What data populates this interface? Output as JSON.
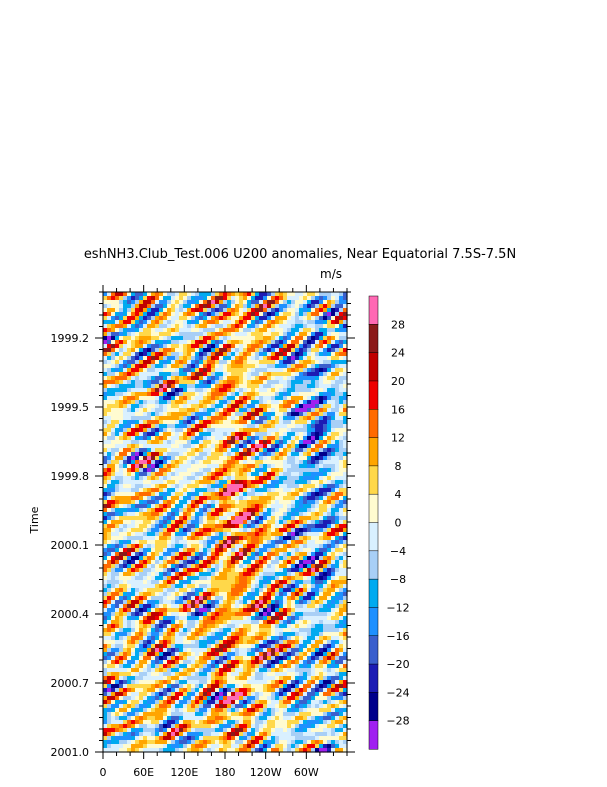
{
  "chart_data": {
    "type": "heatmap",
    "title": "eshNH3.Club_Test.006 U200 anomalies, Near Equatorial 7.5S-7.5N",
    "units_label": "m/s",
    "ylabel": "Time",
    "xlabel": "",
    "x_ticks": [
      "0",
      "60E",
      "120E",
      "180",
      "120W",
      "60W"
    ],
    "x_tick_degrees": [
      0,
      60,
      120,
      180,
      240,
      300
    ],
    "xlim": [
      0,
      360
    ],
    "y_ticks": [
      1999.2,
      1999.5,
      1999.8,
      2000.1,
      2000.4,
      2000.7,
      2001.0
    ],
    "y_tick_labels": [
      "1999.2",
      "1999.5",
      "1999.8",
      "2000.1",
      "2000.4",
      "2000.7",
      "2001.0"
    ],
    "ylim": [
      1999.0,
      2001.0
    ],
    "y_inverted": true,
    "colorbar": {
      "levels": [
        -28,
        -24,
        -20,
        -16,
        -12,
        -8,
        -4,
        0,
        4,
        8,
        12,
        16,
        20,
        24,
        28
      ],
      "level_labels": [
        "−28",
        "−24",
        "−20",
        "−16",
        "−12",
        "−8",
        "−4",
        "0",
        "4",
        "8",
        "12",
        "16",
        "20",
        "24",
        "28"
      ],
      "colors": [
        "#a020f0",
        "#00008b",
        "#1c1cb4",
        "#3a5fcd",
        "#1e90ff",
        "#00aaf0",
        "#a8cff6",
        "#d9f0ff",
        "#fffbd0",
        "#ffd84a",
        "#ffa500",
        "#ff6a00",
        "#ee0000",
        "#c00000",
        "#8b1a1a",
        "#ff69b4"
      ]
    },
    "pattern_description_features": {
      "dominant_positive_band_longitude_deg": [
        165,
        225
      ],
      "negative_region_longitude_deg": [
        280,
        345
      ],
      "peak_positive_time": 1999.84,
      "peak_positive_longitude_deg": 190,
      "peak_positive_value": 30
    }
  }
}
